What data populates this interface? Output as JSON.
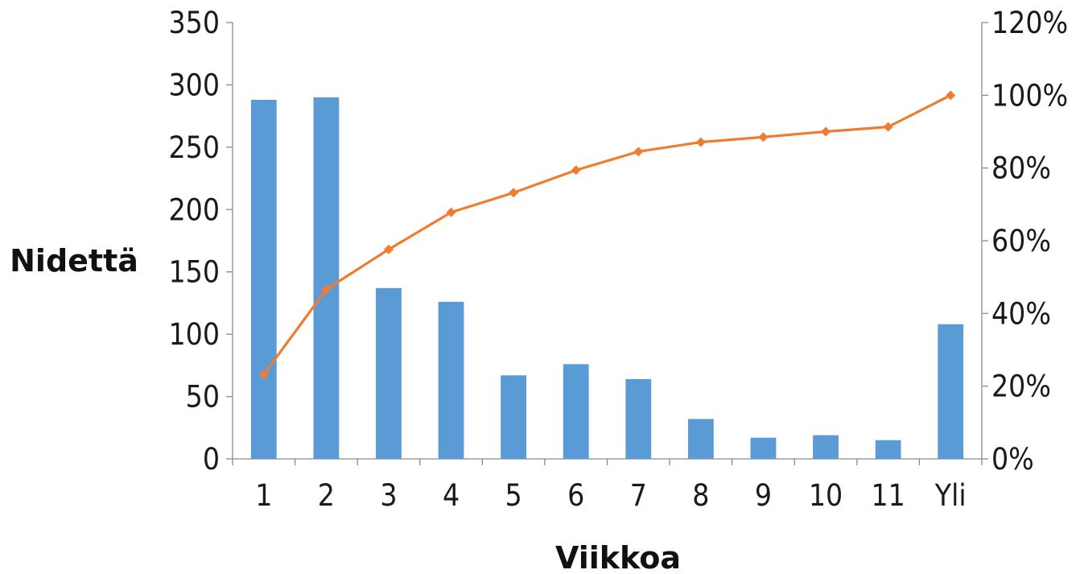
{
  "chart_data": {
    "type": "bar",
    "categories": [
      "1",
      "2",
      "3",
      "4",
      "5",
      "6",
      "7",
      "8",
      "9",
      "10",
      "11",
      "Yli"
    ],
    "series": [
      {
        "type": "bar",
        "axis": "left",
        "color": "#5B9BD5",
        "values": [
          288,
          290,
          137,
          126,
          67,
          76,
          64,
          32,
          17,
          19,
          15,
          108
        ]
      },
      {
        "type": "line",
        "axis": "right",
        "color": "#ED7D31",
        "marker": "diamond",
        "values": [
          23.2,
          46.6,
          57.6,
          67.8,
          73.2,
          79.4,
          84.5,
          87.1,
          88.5,
          90.0,
          91.3,
          100.0
        ]
      }
    ],
    "xlabel": "Viikkoa",
    "ylabel": "Nidettä",
    "ylim": [
      0,
      350
    ],
    "y2lim": [
      0,
      120
    ],
    "yticks": [
      "0",
      "50",
      "100",
      "150",
      "200",
      "250",
      "300",
      "350"
    ],
    "y2ticks": [
      "0%",
      "20%",
      "40%",
      "60%",
      "80%",
      "100%",
      "120%"
    ],
    "grid": false,
    "legend": "none"
  }
}
